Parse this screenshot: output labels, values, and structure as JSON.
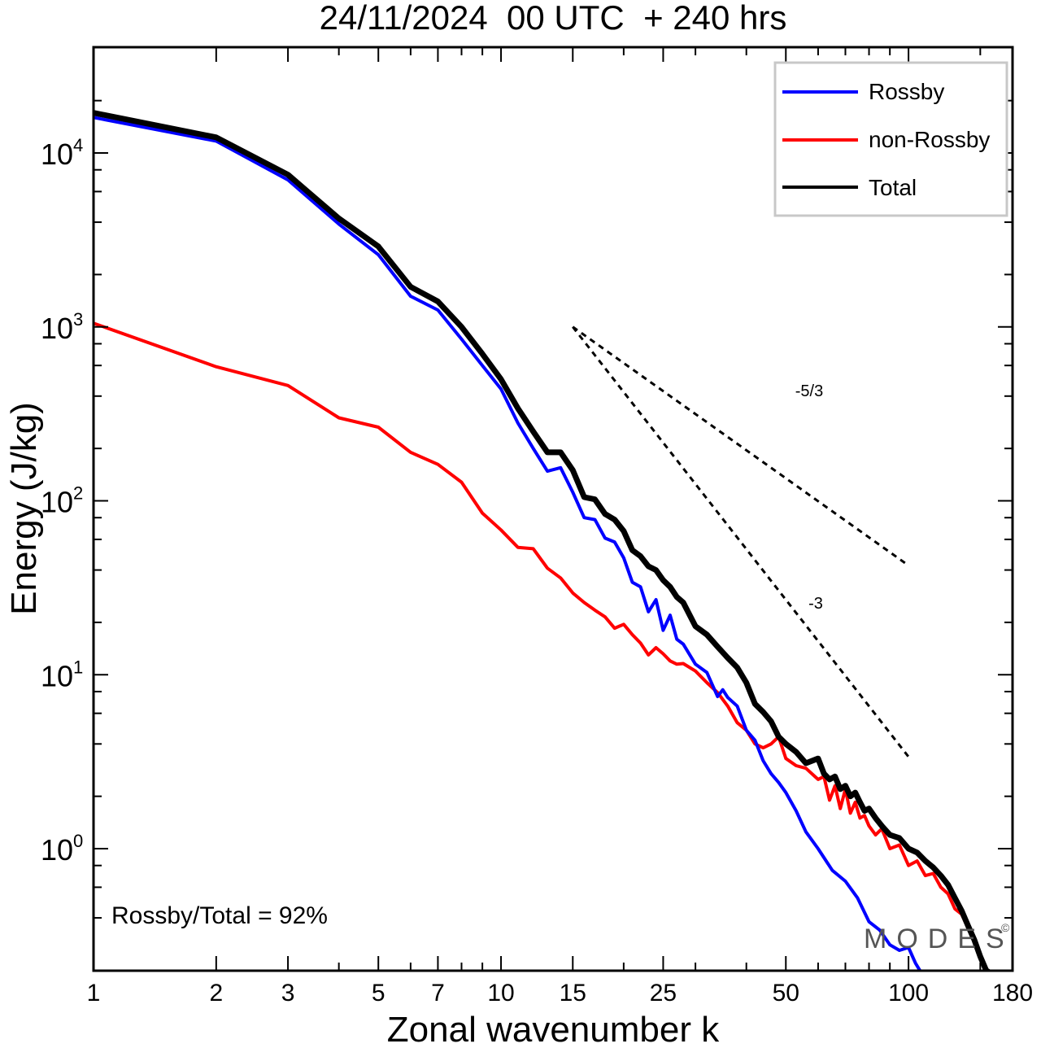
{
  "chart_data": {
    "type": "line",
    "title": "24/11/2024  00 UTC  + 240 hrs",
    "xlabel": "Zonal wavenumber k",
    "ylabel": "Energy (J/kg)",
    "xscale": "log",
    "yscale": "log",
    "xlim": [
      1,
      180
    ],
    "ylim": [
      0.2,
      35000
    ],
    "xticks": [
      1,
      2,
      3,
      5,
      7,
      10,
      15,
      25,
      50,
      100,
      180
    ],
    "yticks": [
      {
        "value": 10000,
        "base": "10",
        "exp": "4"
      },
      {
        "value": 1000,
        "base": "10",
        "exp": "3"
      },
      {
        "value": 100,
        "base": "10",
        "exp": "2"
      },
      {
        "value": 10,
        "base": "10",
        "exp": "1"
      },
      {
        "value": 1,
        "base": "10",
        "exp": "0"
      }
    ],
    "legend_position": "top-right",
    "grid": false,
    "series": [
      {
        "name": "Rossby",
        "color": "#0000ff",
        "x": [
          1,
          2,
          3,
          4,
          5,
          6,
          7,
          8,
          9,
          10,
          11,
          12,
          13,
          14,
          15,
          16,
          17,
          18,
          19,
          20,
          21,
          22,
          23,
          24,
          25,
          26,
          27,
          28,
          30,
          32,
          34,
          35,
          36,
          38,
          40,
          42,
          44,
          46,
          48,
          50,
          53,
          56,
          60,
          65,
          70,
          75,
          80,
          85,
          90,
          95,
          100,
          104,
          108
        ],
        "y": [
          16000,
          11700,
          7000,
          3900,
          2600,
          1500,
          1250,
          850,
          600,
          440,
          280,
          200,
          148,
          155,
          112,
          80,
          78,
          61,
          58,
          47,
          34,
          32,
          23,
          27,
          18,
          22,
          16,
          15,
          11.5,
          10.3,
          7.5,
          8.2,
          7.4,
          6.6,
          4.8,
          4.2,
          3.2,
          2.7,
          2.4,
          2.1,
          1.65,
          1.25,
          1.0,
          0.75,
          0.65,
          0.52,
          0.38,
          0.34,
          0.28,
          0.26,
          0.27,
          0.22,
          0.19
        ]
      },
      {
        "name": "non-Rossby",
        "color": "#ff0000",
        "x": [
          1,
          2,
          3,
          4,
          5,
          6,
          7,
          8,
          9,
          10,
          11,
          12,
          13,
          14,
          15,
          16,
          17,
          18,
          19,
          20,
          21,
          22,
          23,
          24,
          25,
          26,
          27,
          28,
          30,
          32,
          34,
          36,
          38,
          40,
          42,
          44,
          46,
          48,
          50,
          53,
          56,
          60,
          62,
          64,
          66,
          68,
          70,
          72,
          74,
          76,
          78,
          80,
          83,
          86,
          90,
          95,
          100,
          105,
          110,
          115,
          120,
          125,
          130,
          135,
          140,
          145,
          150,
          155
        ],
        "y": [
          1050,
          590,
          460,
          300,
          265,
          190,
          162,
          128,
          85,
          68,
          54,
          53,
          41,
          36,
          29.5,
          26,
          23.5,
          21.5,
          18.5,
          19.5,
          17,
          15.2,
          13,
          14.3,
          13.2,
          12,
          11.5,
          11.6,
          10.5,
          9.0,
          7.9,
          6.6,
          5.3,
          4.8,
          4.0,
          3.8,
          4.0,
          4.4,
          3.3,
          3.0,
          2.9,
          2.5,
          2.6,
          1.9,
          2.3,
          1.7,
          2.2,
          1.6,
          1.85,
          1.5,
          1.55,
          1.35,
          1.2,
          1.3,
          1.0,
          1.05,
          0.8,
          0.85,
          0.7,
          0.72,
          0.6,
          0.55,
          0.45,
          0.42,
          0.35,
          0.3,
          0.24,
          0.19
        ]
      },
      {
        "name": "Total",
        "color": "#000000",
        "x": [
          1,
          2,
          3,
          4,
          5,
          6,
          7,
          8,
          9,
          10,
          11,
          12,
          13,
          14,
          15,
          16,
          17,
          18,
          19,
          20,
          21,
          22,
          23,
          24,
          25,
          26,
          27,
          28,
          30,
          32,
          34,
          36,
          38,
          40,
          42,
          44,
          46,
          48,
          50,
          53,
          56,
          60,
          62,
          64,
          66,
          68,
          70,
          72,
          74,
          76,
          78,
          80,
          83,
          86,
          90,
          95,
          100,
          105,
          110,
          115,
          120,
          125,
          130,
          135,
          140,
          145,
          150,
          155,
          160
        ],
        "y": [
          17000,
          12300,
          7500,
          4200,
          2900,
          1700,
          1400,
          1000,
          700,
          500,
          340,
          250,
          190,
          190,
          150,
          105,
          102,
          84,
          78,
          67,
          52,
          48,
          42,
          40,
          35,
          32,
          28,
          26,
          19,
          17,
          14.5,
          12.5,
          11.0,
          9.0,
          6.8,
          6.1,
          5.4,
          4.4,
          4.0,
          3.6,
          3.1,
          3.3,
          2.7,
          2.5,
          2.6,
          2.2,
          2.3,
          2.0,
          2.1,
          1.85,
          1.65,
          1.7,
          1.5,
          1.35,
          1.2,
          1.15,
          1.0,
          0.95,
          0.85,
          0.78,
          0.7,
          0.62,
          0.52,
          0.44,
          0.36,
          0.3,
          0.24,
          0.2,
          0.19
        ]
      }
    ],
    "reference_lines": [
      {
        "label": "-5/3",
        "slope": -1.6667,
        "x": [
          15,
          100
        ],
        "y": [
          1000,
          42.5
        ]
      },
      {
        "label": "-3",
        "slope": -3,
        "x": [
          15,
          100
        ],
        "y": [
          1000,
          3.375
        ]
      }
    ],
    "annotations": {
      "ratio_text": "Rossby/Total = 92%",
      "watermark": "MODES",
      "copyright": "©"
    }
  }
}
